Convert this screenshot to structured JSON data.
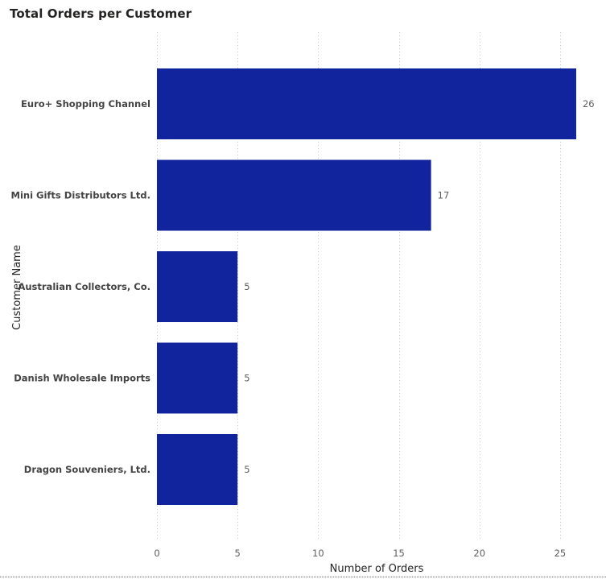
{
  "chart_data": {
    "type": "bar",
    "orientation": "horizontal",
    "title": "Total Orders per Customer",
    "xlabel": "Number of Orders",
    "ylabel": "Customer Name",
    "categories": [
      "Euro+ Shopping Channel",
      "Mini Gifts Distributors Ltd.",
      "Australian Collectors, Co.",
      "Danish Wholesale Imports",
      "Dragon Souveniers, Ltd."
    ],
    "values": [
      26,
      17,
      5,
      5,
      5
    ],
    "xlim": [
      0,
      26.5
    ],
    "xticks": [
      0,
      5,
      10,
      15,
      20,
      25
    ],
    "grid": true,
    "data_labels": true,
    "legend": "none",
    "bar_color": "#12239e"
  }
}
